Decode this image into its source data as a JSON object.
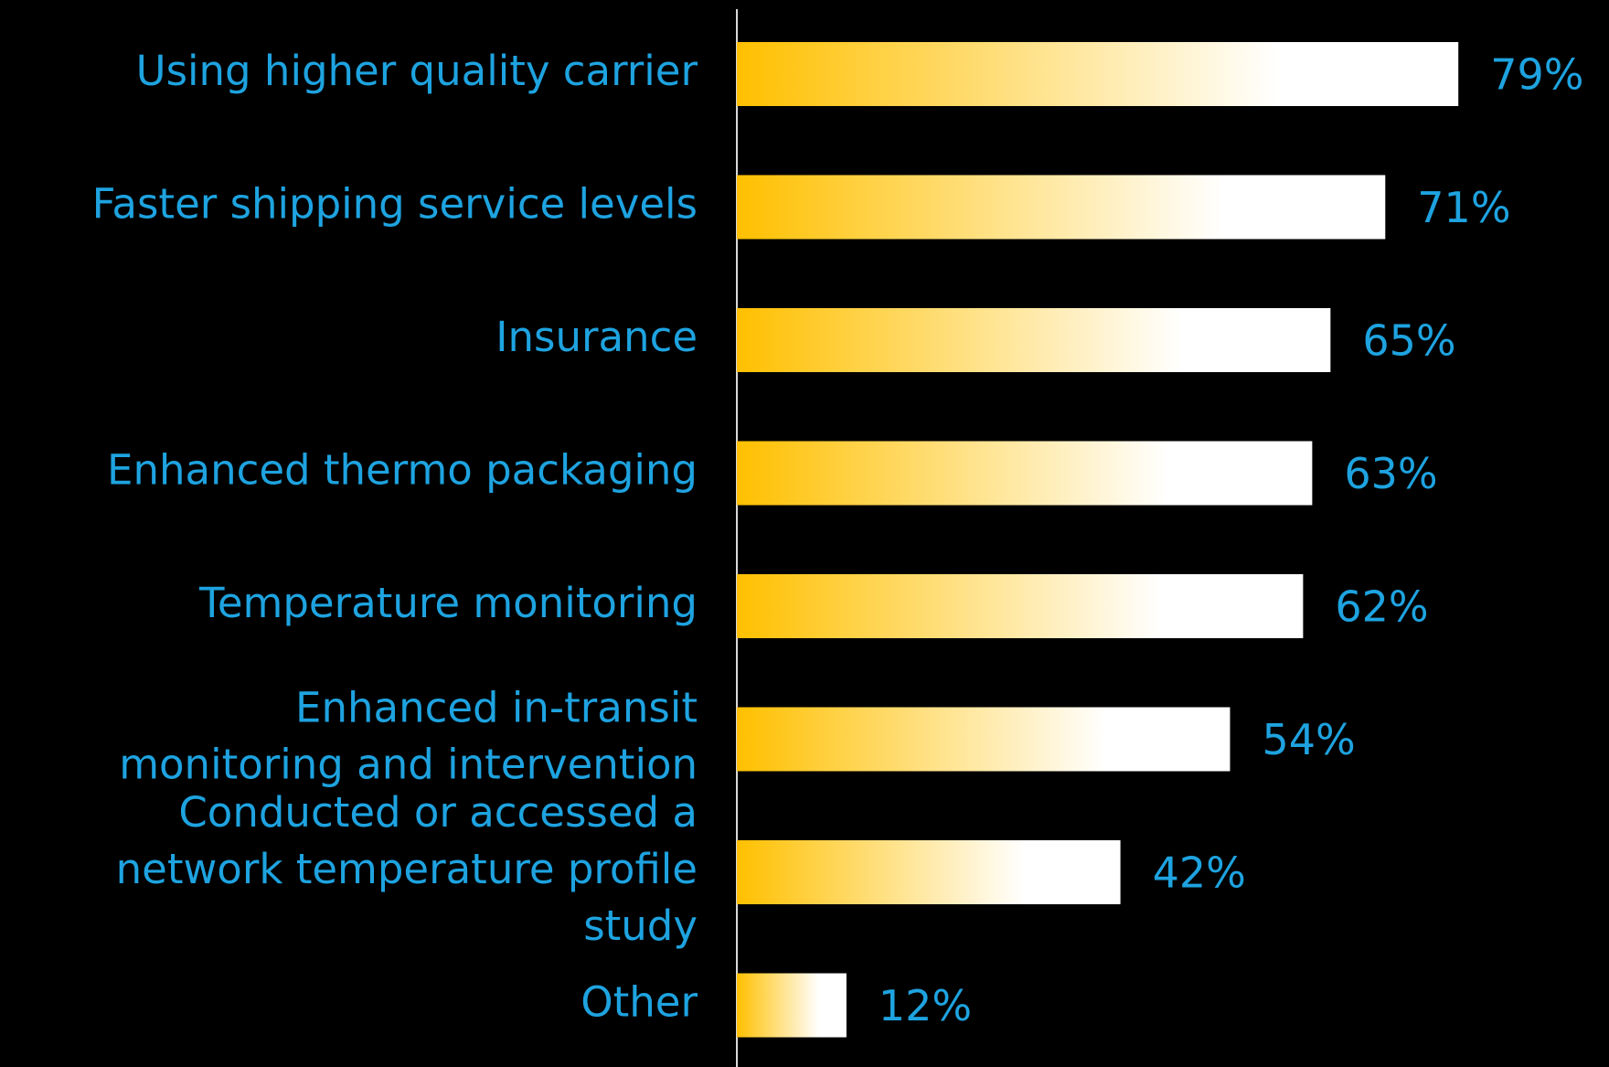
{
  "chart_data": {
    "type": "barh",
    "categories": [
      "Using higher quality carrier",
      "Faster shipping service levels",
      "Insurance",
      "Enhanced thermo packaging",
      "Temperature monitoring",
      "Enhanced in-transit\nmonitoring and intervention",
      "Conducted or accessed a\nnetwork temperature profile\nstudy",
      "Other"
    ],
    "values": [
      79,
      71,
      65,
      63,
      62,
      54,
      42,
      12
    ],
    "value_labels": [
      "79%",
      "71%",
      "65%",
      "63%",
      "62%",
      "54%",
      "42%",
      "12%"
    ],
    "xlim": [
      0,
      100
    ],
    "color": "#ffc000",
    "label_color": "#1ea3e0",
    "background": "#000000"
  }
}
